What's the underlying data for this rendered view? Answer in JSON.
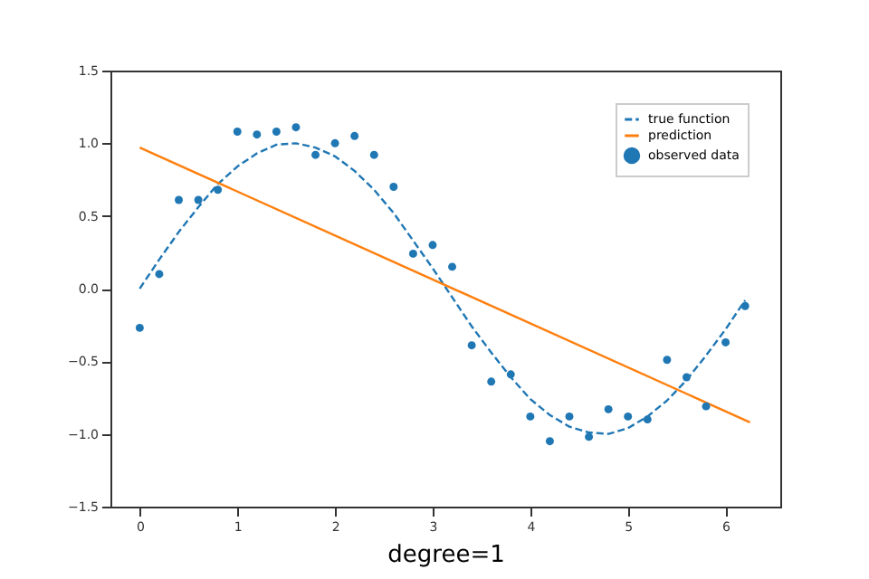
{
  "chart_data": {
    "type": "line",
    "xlabel": "degree=1",
    "xlim": [
      -0.3,
      6.56
    ],
    "ylim": [
      -1.5,
      1.5
    ],
    "xticks": [
      0,
      1,
      2,
      3,
      4,
      5,
      6
    ],
    "yticks": [
      {
        "value": -1.5,
        "label": "−1.5"
      },
      {
        "value": -1,
        "label": "−1.0"
      },
      {
        "value": -0.5,
        "label": "−0.5"
      },
      {
        "value": 0,
        "label": "0.0"
      },
      {
        "value": 0.5,
        "label": "0.5"
      },
      {
        "value": 1,
        "label": "1.0"
      },
      {
        "value": 1.5,
        "label": "1.5"
      }
    ],
    "grid": false,
    "legend": "top right",
    "series": [
      {
        "name": "true function",
        "type": "line",
        "line_style": "dashed",
        "color": "#1f77b4",
        "x": [
          0,
          0.2,
          0.4,
          0.6,
          0.8,
          1,
          1.2,
          1.4,
          1.6,
          1.8,
          2,
          2.2,
          2.4,
          2.6,
          2.8,
          3,
          3.2,
          3.4,
          3.6,
          3.8,
          4,
          4.2,
          4.4,
          4.6,
          4.8,
          5,
          5.2,
          5.4,
          5.6,
          5.8,
          6,
          6.2
        ],
        "values": [
          0,
          0.2,
          0.39,
          0.56,
          0.72,
          0.84,
          0.93,
          0.99,
          1,
          0.97,
          0.91,
          0.81,
          0.68,
          0.52,
          0.33,
          0.14,
          -0.06,
          -0.26,
          -0.44,
          -0.61,
          -0.76,
          -0.87,
          -0.95,
          -0.99,
          -1,
          -0.96,
          -0.88,
          -0.77,
          -0.63,
          -0.46,
          -0.28,
          -0.08
        ]
      },
      {
        "name": "prediction",
        "type": "line",
        "line_style": "solid",
        "color": "#ff7f0e",
        "x": [
          0,
          6.25
        ],
        "values": [
          0.97,
          -0.92
        ]
      },
      {
        "name": "observed data",
        "type": "scatter",
        "marker": "circle",
        "color": "#1f77b4",
        "x": [
          0,
          0.2,
          0.4,
          0.6,
          0.8,
          1,
          1.2,
          1.4,
          1.6,
          1.8,
          2,
          2.2,
          2.4,
          2.6,
          2.8,
          3,
          3.2,
          3.4,
          3.6,
          3.8,
          4,
          4.2,
          4.4,
          4.6,
          4.8,
          5,
          5.2,
          5.4,
          5.6,
          5.8,
          6,
          6.2
        ],
        "values": [
          -0.27,
          0.1,
          0.61,
          0.61,
          0.68,
          1.08,
          1.06,
          1.08,
          1.11,
          0.92,
          1,
          1.05,
          0.92,
          0.7,
          0.24,
          0.3,
          0.15,
          -0.39,
          -0.64,
          -0.59,
          -0.88,
          -1.05,
          -0.88,
          -1.02,
          -0.83,
          -0.88,
          -0.9,
          -0.49,
          -0.61,
          -0.81,
          -0.37,
          -0.12
        ]
      }
    ]
  }
}
